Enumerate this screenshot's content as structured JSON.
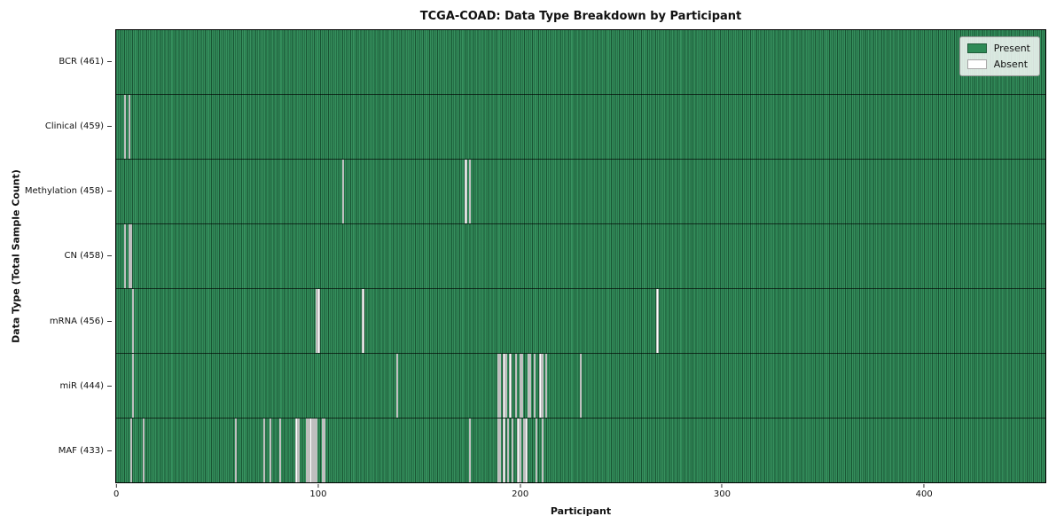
{
  "chart_data": {
    "type": "heatmap",
    "title": "TCGA-COAD: Data Type Breakdown by Participant",
    "xlabel": "Participant",
    "ylabel": "Data Type (Total Sample Count)",
    "n_participants": 461,
    "x_ticks": [
      0,
      100,
      200,
      300,
      400
    ],
    "colors": {
      "present": "#2e8b57",
      "absent": "#ffffff"
    },
    "legend": [
      {
        "label": "Present",
        "color": "#2e8b57"
      },
      {
        "label": "Absent",
        "color": "#ffffff"
      }
    ],
    "rows": [
      {
        "label": "BCR (461)",
        "data_type": "BCR",
        "count": 461,
        "absent_participants": []
      },
      {
        "label": "Clinical (459)",
        "data_type": "Clinical",
        "count": 459,
        "absent_participants": [
          4,
          6
        ]
      },
      {
        "label": "Methylation (458)",
        "data_type": "Methylation",
        "count": 458,
        "absent_participants": [
          112,
          173,
          175
        ]
      },
      {
        "label": "CN (458)",
        "data_type": "CN",
        "count": 458,
        "absent_participants": [
          4,
          6,
          7
        ]
      },
      {
        "label": "mRNA (456)",
        "data_type": "mRNA",
        "count": 456,
        "absent_participants": [
          8,
          99,
          100,
          122,
          268
        ]
      },
      {
        "label": "miR (444)",
        "data_type": "miR",
        "count": 444,
        "absent_participants": [
          8,
          139,
          189,
          190,
          192,
          193,
          195,
          198,
          200,
          201,
          204,
          205,
          207,
          210,
          211,
          213,
          230
        ]
      },
      {
        "label": "MAF (433)",
        "data_type": "MAF",
        "count": 433,
        "absent_participants": [
          7,
          13,
          59,
          73,
          76,
          81,
          89,
          90,
          94,
          95,
          96,
          97,
          98,
          99,
          102,
          103,
          175,
          189,
          190,
          192,
          194,
          196,
          199,
          200,
          202,
          203,
          208,
          211
        ]
      }
    ]
  }
}
